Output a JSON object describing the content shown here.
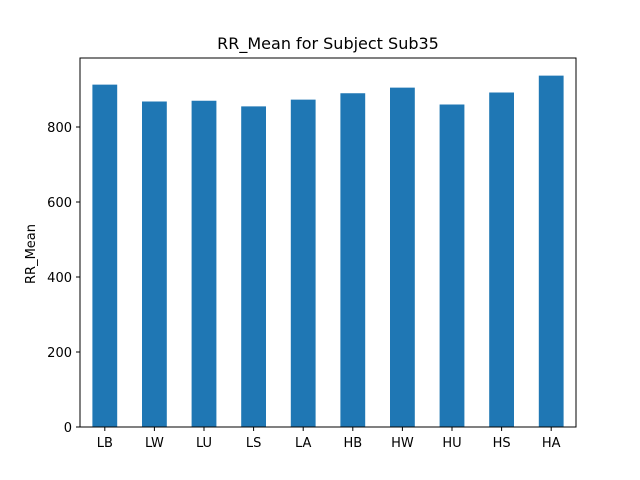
{
  "chart_data": {
    "type": "bar",
    "title": "RR_Mean for Subject Sub35",
    "xlabel": "",
    "ylabel": "RR_Mean",
    "categories": [
      "LB",
      "LW",
      "LU",
      "LS",
      "LA",
      "HB",
      "HW",
      "HU",
      "HS",
      "HA"
    ],
    "values": [
      913,
      868,
      870,
      855,
      873,
      890,
      905,
      860,
      892,
      937
    ],
    "ylim": [
      0,
      984
    ],
    "yticks": [
      0,
      200,
      400,
      600,
      800
    ],
    "bar_color": "#1f77b4",
    "grid": false,
    "legend": "none"
  }
}
